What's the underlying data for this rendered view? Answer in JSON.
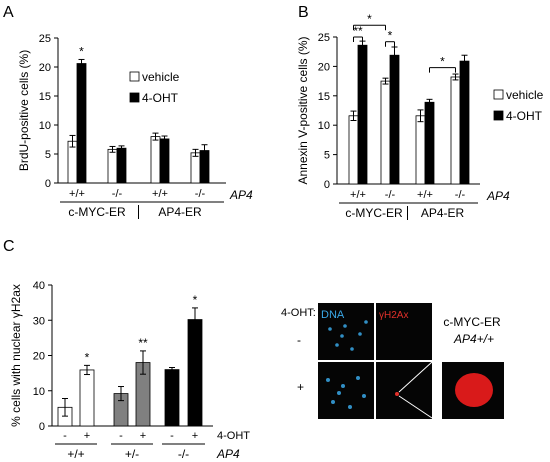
{
  "chart_data": [
    {
      "panel": "A",
      "type": "bar",
      "ylabel": "BrdU-positive cells (%)",
      "ylim": [
        0,
        25
      ],
      "yticks": [
        0,
        5,
        10,
        15,
        20,
        25
      ],
      "categories": [
        "+/+",
        "-/-",
        "+/+",
        "-/-"
      ],
      "groups": [
        {
          "label": "c-MYC-ER",
          "span": [
            0,
            1
          ]
        },
        {
          "label": "AP4-ER",
          "span": [
            2,
            3
          ]
        }
      ],
      "gene_label": "AP4",
      "legend_position": "right",
      "series": [
        {
          "name": "vehicle",
          "color": "#ffffff",
          "values": [
            7.2,
            5.8,
            8.0,
            5.2
          ],
          "errors": [
            1.0,
            0.5,
            0.6,
            0.6
          ]
        },
        {
          "name": "4-OHT",
          "color": "#000000",
          "values": [
            20.6,
            6.0,
            7.6,
            5.6
          ],
          "errors": [
            0.7,
            0.4,
            0.5,
            1.0
          ]
        }
      ],
      "significance": [
        {
          "category": 0,
          "series": 1,
          "label": "*"
        }
      ]
    },
    {
      "panel": "B",
      "type": "bar",
      "ylabel": "Annexin V-positive cells (%)",
      "ylim": [
        0,
        25
      ],
      "yticks": [
        0,
        5,
        10,
        15,
        20,
        25
      ],
      "categories": [
        "+/+",
        "-/-",
        "+/+",
        "-/-"
      ],
      "groups": [
        {
          "label": "c-MYC-ER",
          "span": [
            0,
            1
          ]
        },
        {
          "label": "AP4-ER",
          "span": [
            2,
            3
          ]
        }
      ],
      "gene_label": "AP4",
      "legend_position": "right",
      "series": [
        {
          "name": "vehicle",
          "color": "#ffffff",
          "values": [
            11.6,
            17.5,
            11.6,
            18.2
          ],
          "errors": [
            0.8,
            0.5,
            1.0,
            0.5
          ]
        },
        {
          "name": "4-OHT",
          "color": "#000000",
          "values": [
            23.6,
            21.9,
            13.9,
            20.9
          ],
          "errors": [
            0.7,
            1.4,
            0.5,
            1.0
          ]
        }
      ],
      "brackets": [
        {
          "from": [
            0,
            0
          ],
          "to": [
            0,
            1
          ],
          "label": "**",
          "level": 25
        },
        {
          "from": [
            0,
            0
          ],
          "to": [
            1,
            0
          ],
          "label": "*",
          "level": 27
        },
        {
          "from": [
            1,
            0
          ],
          "to": [
            1,
            1
          ],
          "label": "*",
          "level": 24.2
        },
        {
          "from": [
            2,
            1
          ],
          "to": [
            3,
            0
          ],
          "label": "*",
          "level": 19.8
        }
      ]
    },
    {
      "panel": "C",
      "type": "bar",
      "ylabel": "% cells with nuclear γH2ax",
      "ylim": [
        0,
        40
      ],
      "yticks": [
        0,
        10,
        20,
        30,
        40
      ],
      "treatment_label": "4-OHT",
      "treatment_ticks": [
        "-",
        "+",
        "-",
        "+",
        "-",
        "+"
      ],
      "genotypes": [
        "+/+",
        "+/-",
        "-/-"
      ],
      "gene_label": "AP4",
      "values": [
        5.3,
        15.9,
        9.2,
        18.0,
        16.0,
        30.2
      ],
      "errors": [
        2.5,
        1.3,
        2.0,
        3.3,
        0.6,
        3.3
      ],
      "colors": [
        "#ffffff",
        "#ffffff",
        "#808080",
        "#808080",
        "#000000",
        "#000000"
      ],
      "significance": [
        {
          "index": 1,
          "label": "*"
        },
        {
          "index": 3,
          "label": "**"
        },
        {
          "index": 5,
          "label": "*"
        }
      ]
    }
  ],
  "panels": {
    "a": "A",
    "b": "B",
    "c": "C"
  },
  "micro": {
    "treatment_label": "4-OHT:",
    "row_minus": "-",
    "row_plus": "+",
    "dna_label": "DNA",
    "h2ax_label": "γH2Ax",
    "cell_line": "c-MYC-ER",
    "genotype": "AP4+/+",
    "dna_color": "#3aa8e8",
    "h2ax_color": "#e0302a",
    "nucleus_color": "#d91a1a"
  }
}
